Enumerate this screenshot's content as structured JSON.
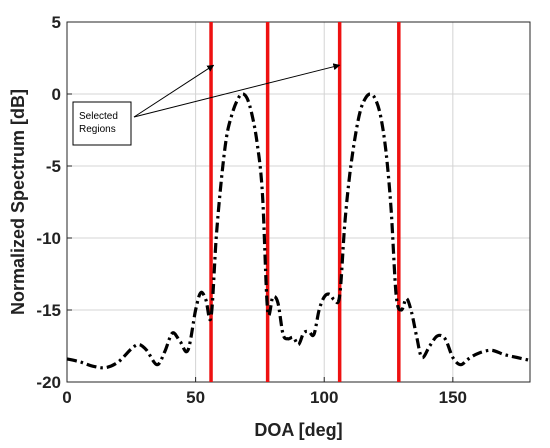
{
  "chart_data": {
    "type": "line",
    "title": "",
    "xlabel": "DOA [deg]",
    "ylabel": "Normalized Spectrum [dB]",
    "xlim": [
      0,
      180
    ],
    "ylim": [
      -20,
      5
    ],
    "xticks": [
      0,
      50,
      100,
      150
    ],
    "yticks": [
      5,
      0,
      -5,
      -10,
      -15,
      -20
    ],
    "grid": true,
    "series": [
      {
        "style": "dash-dot",
        "color": "#000000",
        "x": [
          0,
          5,
          10,
          15,
          20,
          25,
          28,
          31,
          35,
          38,
          41,
          44,
          47,
          50,
          52,
          54,
          56,
          58,
          60,
          62,
          64,
          66,
          68,
          70,
          72,
          74,
          76,
          78,
          80,
          82,
          84,
          86,
          88,
          90,
          92,
          94,
          96,
          98,
          100,
          102,
          104,
          106,
          108,
          110,
          112,
          114,
          116,
          118,
          120,
          122,
          124,
          126,
          128,
          130,
          132,
          134,
          136,
          138,
          141,
          144,
          147,
          150,
          153,
          156,
          160,
          165,
          170,
          175,
          180
        ],
        "y": [
          -18.4,
          -18.6,
          -18.9,
          -19.0,
          -18.6,
          -17.7,
          -17.4,
          -17.8,
          -18.8,
          -17.9,
          -16.6,
          -17.2,
          -17.8,
          -15.0,
          -13.8,
          -14.3,
          -15.5,
          -10.0,
          -6.0,
          -3.0,
          -1.5,
          -0.5,
          0.0,
          -0.3,
          -1.5,
          -3.5,
          -7.0,
          -15.0,
          -14.1,
          -14.5,
          -16.7,
          -17.0,
          -16.9,
          -17.4,
          -16.6,
          -16.5,
          -16.7,
          -15.0,
          -14.1,
          -13.9,
          -14.3,
          -14.0,
          -9.0,
          -5.5,
          -3.0,
          -1.2,
          -0.3,
          0.0,
          -0.4,
          -1.6,
          -4.0,
          -8.0,
          -14.0,
          -15.0,
          -14.2,
          -15.2,
          -16.9,
          -18.3,
          -17.5,
          -16.8,
          -17.0,
          -18.3,
          -18.8,
          -18.4,
          -18.0,
          -17.8,
          -18.1,
          -18.3,
          -18.5
        ]
      }
    ],
    "vertical_lines": {
      "color": "#ee1111",
      "x": [
        56,
        78,
        106,
        129
      ]
    },
    "annotation": {
      "text_lines": [
        "Selected",
        "Regions"
      ],
      "arrow_targets": [
        {
          "x": 57,
          "y": 2.0
        },
        {
          "x": 106,
          "y": 2.0
        }
      ]
    }
  }
}
